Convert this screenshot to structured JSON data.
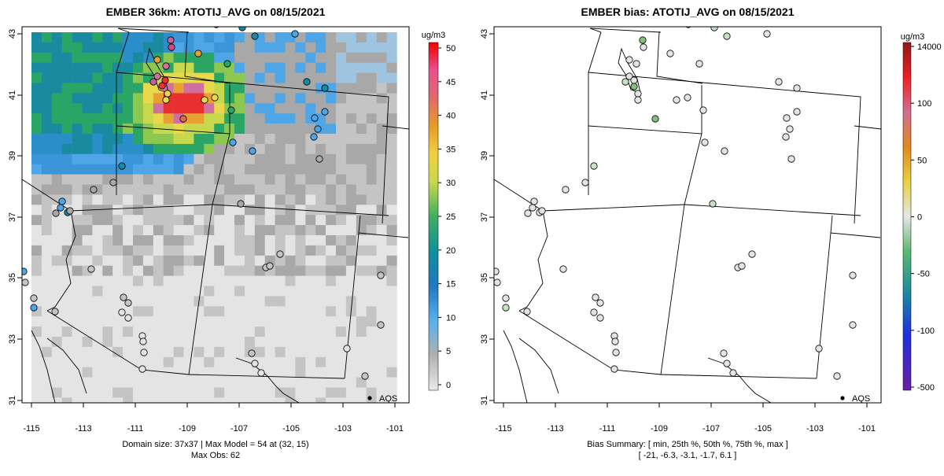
{
  "left": {
    "title": "EMBER 36km: ATOTIJ_AVG on 08/15/2021",
    "legend_marker": "AQS",
    "footer_line1": "Domain size: 37x37 | Max Model = 54 at (32, 15)",
    "footer_line2": "Max Obs: 62",
    "colorbar": {
      "unit": "ug/m3",
      "ticks": [
        "0",
        "5",
        "10",
        "15",
        "20",
        "25",
        "30",
        "35",
        "40",
        "45",
        "50"
      ]
    }
  },
  "right": {
    "title": "EMBER bias: ATOTIJ_AVG on 08/15/2021",
    "legend_marker": "AQS",
    "footer_line1": "Bias Summary: [ min, 25th %, 50th %, 75th %, max ]",
    "footer_line2": "[ -21,   -6.3,   -3.1,   -1.7,   6.1 ]",
    "colorbar": {
      "unit": "ug/m3",
      "ticks": [
        "14000",
        "100",
        "50",
        "0",
        "-50",
        "-100",
        "-500"
      ]
    }
  },
  "axes": {
    "x_ticks": [
      "-115",
      "-113",
      "-111",
      "-109",
      "-107",
      "-105",
      "-103",
      "-101"
    ],
    "y_ticks": [
      "43",
      "41",
      "39",
      "37",
      "35",
      "33",
      "31"
    ]
  },
  "colors": {
    "grey_light": "#e4e4e4",
    "grey_mid": "#c4c4c4",
    "grey_dark": "#a8a8a8",
    "blue": "#4ea6e6",
    "teal": "#1a8aa0",
    "green": "#2aa566",
    "yellow": "#e8d84a",
    "orange": "#e8a030",
    "red": "#e83030",
    "pink": "#d070a0"
  }
}
